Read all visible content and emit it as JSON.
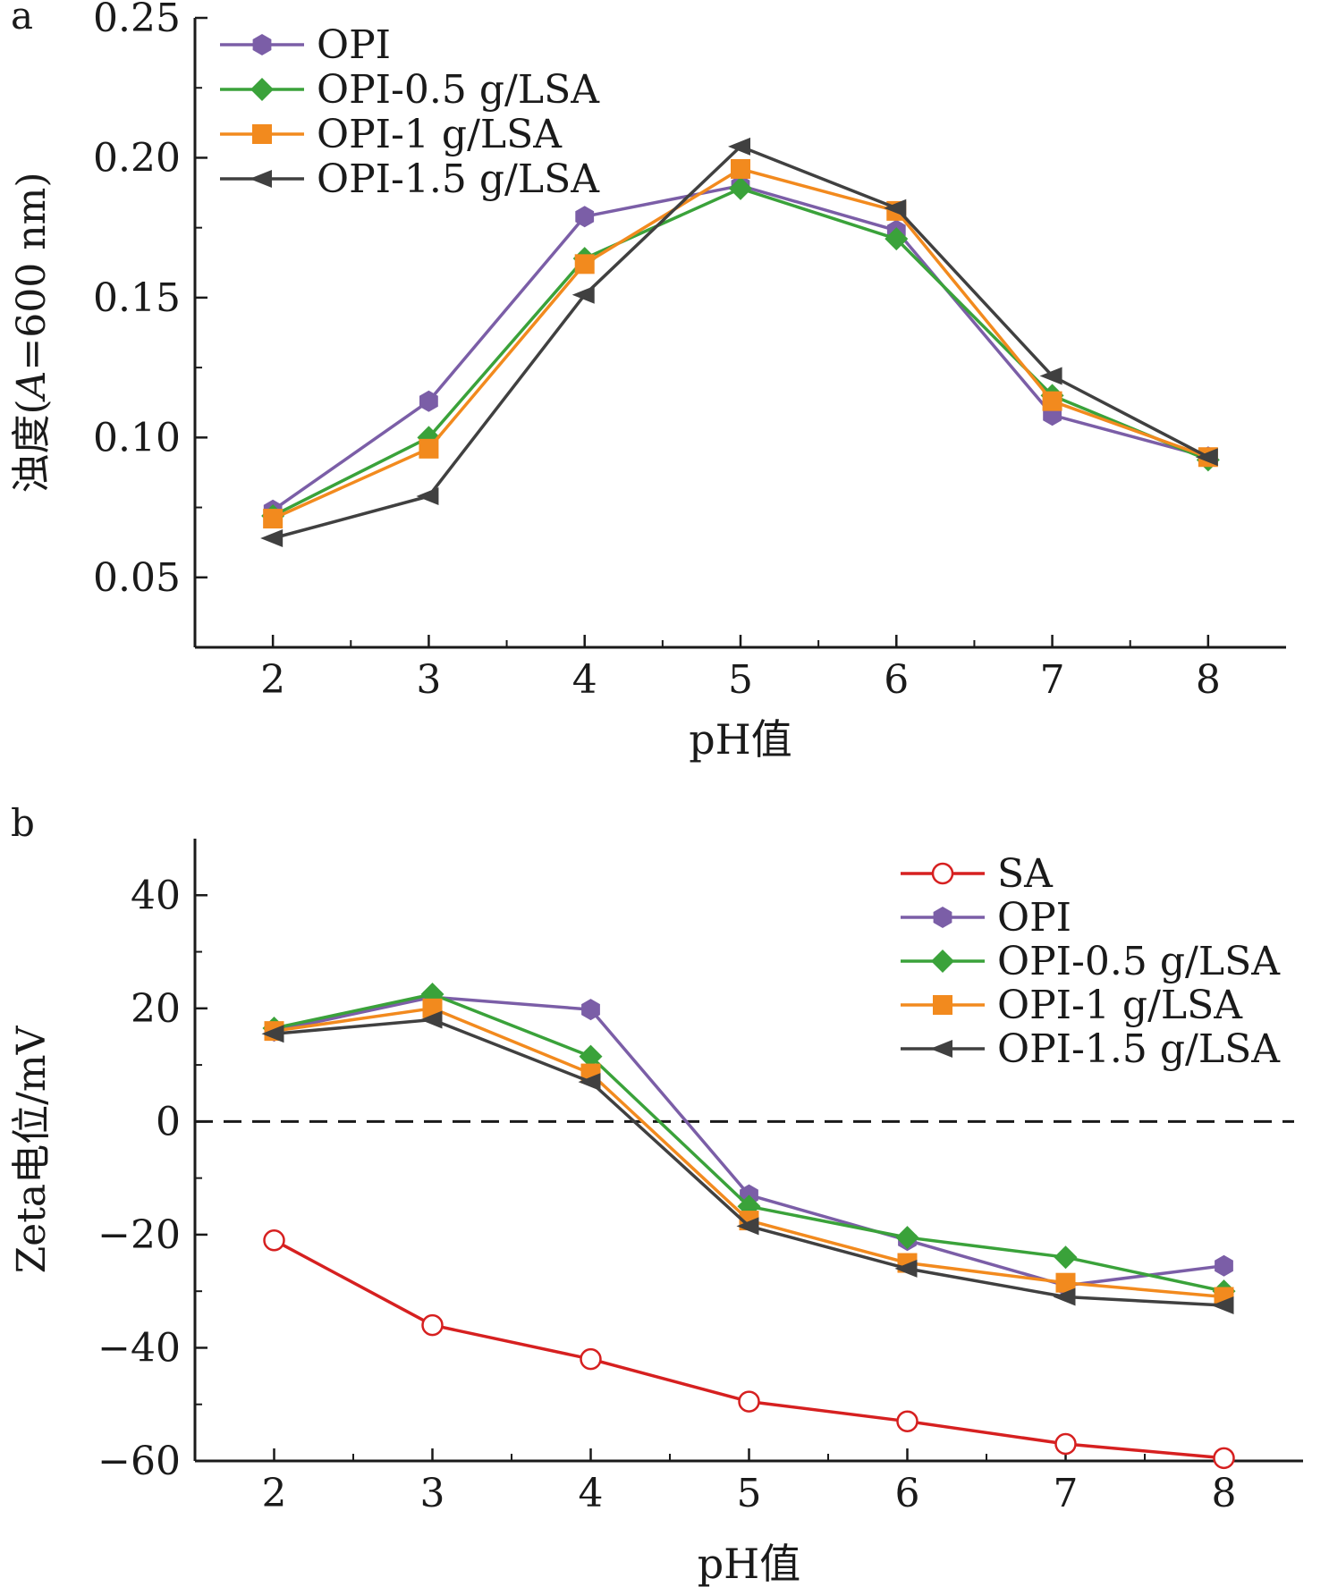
{
  "chart_data": [
    {
      "panel_label": "a",
      "type": "line",
      "x": [
        2,
        3,
        4,
        5,
        6,
        7,
        8
      ],
      "xlabel": "pH值",
      "ylabel_prefix": "浊度(",
      "ylabel_italic": "A",
      "ylabel_suffix": "=600 nm)",
      "xlim": [
        1.5,
        8.5
      ],
      "ylim": [
        0.025,
        0.25
      ],
      "x_ticks": [
        2,
        3,
        4,
        5,
        6,
        7,
        8
      ],
      "y_ticks": [
        0.05,
        0.1,
        0.15,
        0.2,
        0.25
      ],
      "y_tick_labels": [
        "0.05",
        "0.10",
        "0.15",
        "0.20",
        "0.25"
      ],
      "legend_position": "top-left",
      "series": [
        {
          "name": "OPI",
          "color": "#7b5ea7",
          "marker": "hexagon",
          "values": [
            0.074,
            0.113,
            0.179,
            0.19,
            0.174,
            0.108,
            0.093
          ]
        },
        {
          "name": "OPI-0.5 g/LSA",
          "color": "#3aa23a",
          "marker": "diamond",
          "values": [
            0.072,
            0.1,
            0.164,
            0.189,
            0.171,
            0.115,
            0.092
          ]
        },
        {
          "name": "OPI-1 g/LSA",
          "color": "#f28a1e",
          "marker": "square",
          "values": [
            0.071,
            0.096,
            0.162,
            0.196,
            0.181,
            0.113,
            0.093
          ]
        },
        {
          "name": "OPI-1.5 g/LSA",
          "color": "#404040",
          "marker": "triangle-left",
          "values": [
            0.064,
            0.079,
            0.151,
            0.204,
            0.182,
            0.122,
            0.093
          ]
        }
      ]
    },
    {
      "panel_label": "b",
      "type": "line",
      "x": [
        2,
        3,
        4,
        5,
        6,
        7,
        8
      ],
      "xlabel": "pH值",
      "ylabel": "Zeta电位/mV",
      "xlim": [
        1.5,
        8.5
      ],
      "ylim": [
        -60,
        50
      ],
      "x_ticks": [
        2,
        3,
        4,
        5,
        6,
        7,
        8
      ],
      "y_ticks": [
        -60,
        -40,
        -20,
        0,
        20,
        40
      ],
      "y_tick_labels": [
        "−60",
        "−40",
        "−20",
        "0",
        "20",
        "40"
      ],
      "reference_line": 0,
      "legend_position": "top-right",
      "series": [
        {
          "name": "SA",
          "color": "#d62020",
          "marker": "open-circle",
          "values": [
            -21,
            -36,
            -42,
            -49.5,
            -53,
            -57,
            -59.5
          ]
        },
        {
          "name": "OPI",
          "color": "#7b5ea7",
          "marker": "hexagon",
          "values": [
            16,
            22,
            19.8,
            -13,
            -21,
            -29,
            -25.5
          ]
        },
        {
          "name": "OPI-0.5 g/LSA",
          "color": "#3aa23a",
          "marker": "diamond",
          "values": [
            16.5,
            22.5,
            11.5,
            -15,
            -20.5,
            -24,
            -30
          ]
        },
        {
          "name": "OPI-1 g/LSA",
          "color": "#f28a1e",
          "marker": "square",
          "values": [
            16,
            20,
            8.5,
            -17.5,
            -25,
            -28.5,
            -31
          ]
        },
        {
          "name": "OPI-1.5 g/LSA",
          "color": "#404040",
          "marker": "triangle-left",
          "values": [
            15.5,
            18,
            7,
            -18.5,
            -26,
            -31,
            -32.5
          ]
        }
      ]
    }
  ]
}
